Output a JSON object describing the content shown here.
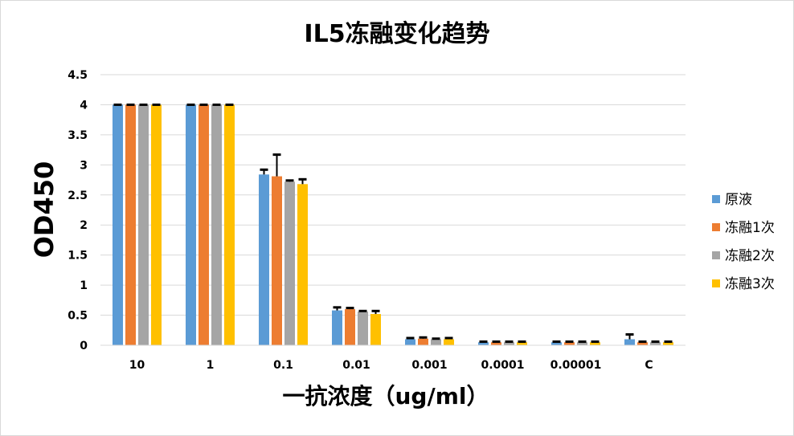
{
  "chart_data": {
    "type": "bar",
    "title": "IL5冻融变化趋势",
    "xlabel": "一抗浓度（ug/ml）",
    "ylabel": "OD450",
    "ylim": [
      0,
      4.5
    ],
    "yticks": [
      "0",
      "0.5",
      "1",
      "1.5",
      "2",
      "2.5",
      "3",
      "3.5",
      "4",
      "4.5"
    ],
    "categories": [
      "10",
      "1",
      "0.1",
      "0.01",
      "0.001",
      "0.0001",
      "0.00001",
      "C"
    ],
    "grid": true,
    "legend_position": "right",
    "series": [
      {
        "name": "原液",
        "color": "#5B9BD5",
        "values": [
          4.0,
          4.0,
          2.84,
          0.58,
          0.1,
          0.05,
          0.05,
          0.1
        ],
        "errors": [
          0.0,
          0.0,
          0.08,
          0.05,
          0.02,
          0.01,
          0.01,
          0.08
        ]
      },
      {
        "name": "冻融1次",
        "color": "#ED7D31",
        "values": [
          4.0,
          4.0,
          2.81,
          0.6,
          0.11,
          0.05,
          0.05,
          0.05
        ],
        "errors": [
          0.0,
          0.0,
          0.36,
          0.02,
          0.02,
          0.01,
          0.01,
          0.01
        ]
      },
      {
        "name": "冻融2次",
        "color": "#A5A5A5",
        "values": [
          4.0,
          4.0,
          2.72,
          0.56,
          0.1,
          0.05,
          0.05,
          0.05
        ],
        "errors": [
          0.0,
          0.0,
          0.02,
          0.01,
          0.01,
          0.01,
          0.01,
          0.01
        ]
      },
      {
        "name": "冻融3次",
        "color": "#FFC000",
        "values": [
          4.0,
          4.0,
          2.68,
          0.52,
          0.1,
          0.05,
          0.05,
          0.05
        ],
        "errors": [
          0.0,
          0.0,
          0.08,
          0.05,
          0.02,
          0.01,
          0.01,
          0.01
        ]
      }
    ]
  }
}
